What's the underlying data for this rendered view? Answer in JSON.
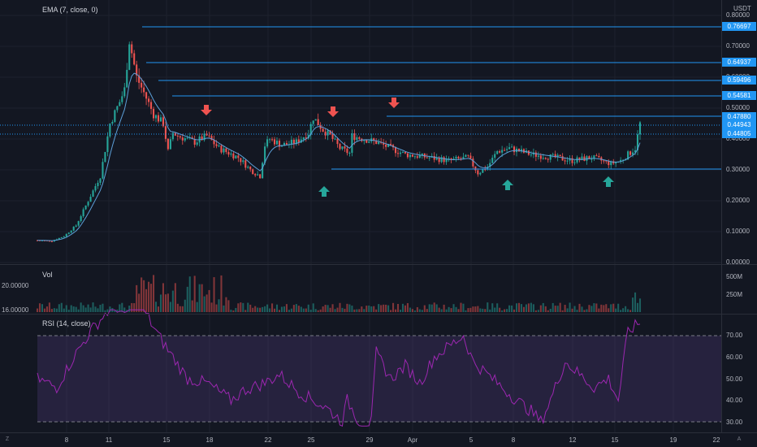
{
  "price_pane": {
    "indicator_label": "EMA (7, close, 0)",
    "currency": "USDT",
    "ticks": [
      "0.80000",
      "0.70000",
      "0.60000",
      "0.50000",
      "0.40000",
      "0.30000",
      "0.20000",
      "0.10000",
      "0.00000"
    ],
    "levels": [
      "0.76697",
      "0.64937",
      "0.59496",
      "0.54581",
      "0.47880",
      "0.44943",
      "0.44805"
    ],
    "level_color": "#2196f3",
    "current_price_color": "#2196f3"
  },
  "volume_pane": {
    "label": "Vol",
    "left_ticks": [
      "20.00000",
      "16.00000"
    ],
    "right_ticks": [
      "500M",
      "250M"
    ]
  },
  "rsi_pane": {
    "label": "RSI (14, close)",
    "ticks": [
      "70.00",
      "60.00",
      "50.00",
      "40.00",
      "30.00"
    ],
    "line_color": "#9c27b0",
    "band_color": "#7e57c2"
  },
  "time_axis": {
    "labels": [
      "8",
      "11",
      "15",
      "18",
      "22",
      "25",
      "29",
      "Apr",
      "5",
      "8",
      "12",
      "15",
      "19",
      "22"
    ]
  },
  "corner_buttons": {
    "left": "Z",
    "right": "A"
  },
  "markers": {
    "down_arrow_color": "#ef5350",
    "up_arrow_color": "#26a69a"
  }
}
